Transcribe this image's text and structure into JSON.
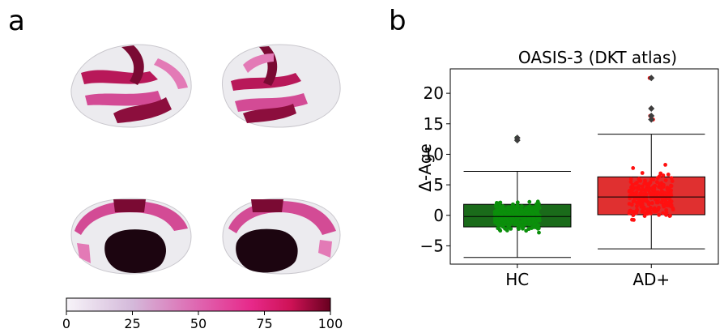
{
  "panels": {
    "a": {
      "label": "a",
      "colorbar": {
        "ticks": [
          "0",
          "25",
          "50",
          "75",
          "100"
        ],
        "tick_values": [
          0,
          25,
          50,
          75,
          100
        ],
        "range": [
          0,
          100
        ],
        "colors": [
          "#f7f4f9",
          "#d4b9da",
          "#df65b0",
          "#e7298a",
          "#ce1256",
          "#67001f"
        ]
      }
    },
    "b": {
      "label": "b"
    }
  },
  "chart_data": {
    "type": "box",
    "title": "OASIS-3 (DKT atlas)",
    "xlabel": "",
    "ylabel": "Δ-Age",
    "categories": [
      "HC",
      "AD+"
    ],
    "ylim": [
      -8,
      24
    ],
    "yticks": [
      -5,
      0,
      5,
      10,
      15,
      20
    ],
    "grid": false,
    "colors": {
      "HC": "#1a6b1a",
      "AD+": "#e03030",
      "HC_points": "#0b8f0b",
      "AD+_points": "#ff1010"
    },
    "boxes": [
      {
        "name": "HC",
        "whisker_low": -6.9,
        "q1": -1.9,
        "median": -0.2,
        "q3": 1.8,
        "whisker_high": 7.2,
        "outliers": [
          12.3,
          12.7
        ]
      },
      {
        "name": "AD+",
        "whisker_low": -5.5,
        "q1": 0.1,
        "median": 3.0,
        "q3": 6.3,
        "whisker_high": 13.3,
        "outliers": [
          15.7,
          16.3,
          17.5,
          22.5
        ]
      }
    ]
  }
}
